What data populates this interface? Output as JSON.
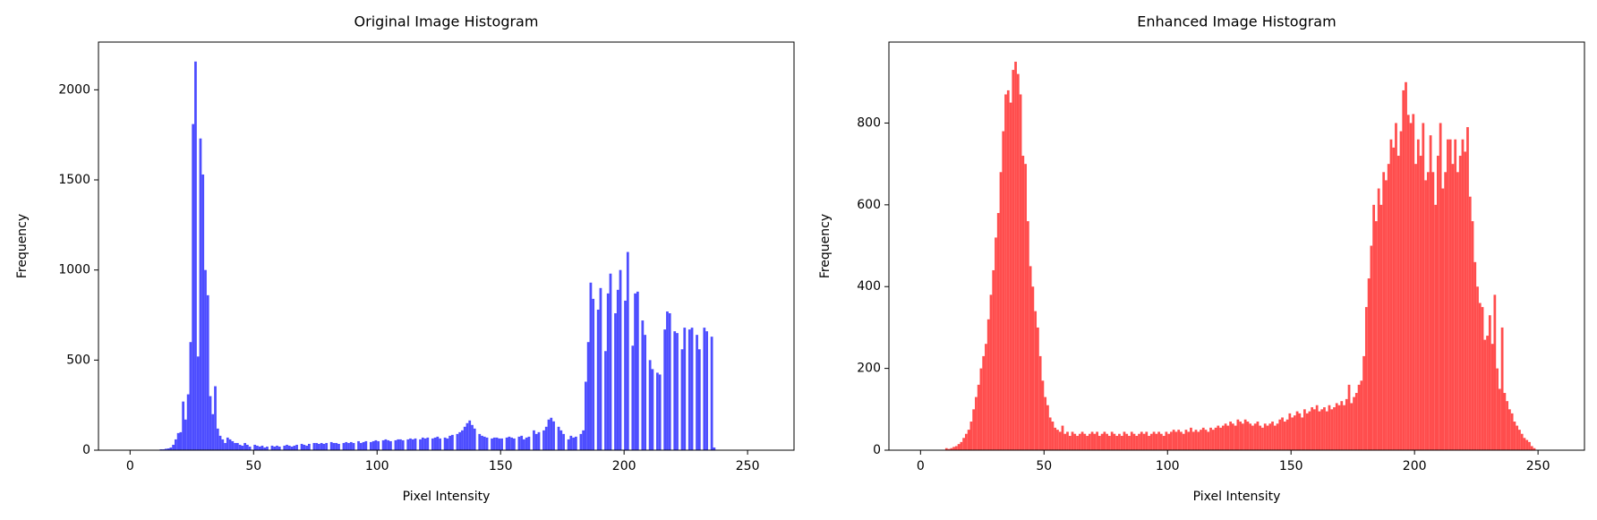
{
  "chart_data": [
    {
      "type": "histogram",
      "title": "Original Image Histogram",
      "xlabel": "Pixel Intensity",
      "ylabel": "Frequency",
      "color": "#4d4dff",
      "bins": [
        0,
        1,
        2,
        3,
        4,
        5,
        6,
        7,
        8,
        9,
        10,
        11,
        12,
        13,
        14,
        15,
        16,
        17,
        18,
        19,
        20,
        21,
        22,
        23,
        24,
        25,
        26,
        27,
        28,
        29,
        30,
        31,
        32,
        33,
        34,
        35,
        36,
        37,
        38,
        39,
        40,
        41,
        42,
        43,
        44,
        45,
        46,
        47,
        48,
        49,
        50,
        51,
        52,
        53,
        54,
        55,
        56,
        57,
        58,
        59,
        60,
        61,
        62,
        63,
        64,
        65,
        66,
        67,
        68,
        69,
        70,
        71,
        72,
        73,
        74,
        75,
        76,
        77,
        78,
        79,
        80,
        81,
        82,
        83,
        84,
        85,
        86,
        87,
        88,
        89,
        90,
        91,
        92,
        93,
        94,
        95,
        96,
        97,
        98,
        99,
        100,
        101,
        102,
        103,
        104,
        105,
        106,
        107,
        108,
        109,
        110,
        111,
        112,
        113,
        114,
        115,
        116,
        117,
        118,
        119,
        120,
        121,
        122,
        123,
        124,
        125,
        126,
        127,
        128,
        129,
        130,
        131,
        132,
        133,
        134,
        135,
        136,
        137,
        138,
        139,
        140,
        141,
        142,
        143,
        144,
        145,
        146,
        147,
        148,
        149,
        150,
        151,
        152,
        153,
        154,
        155,
        156,
        157,
        158,
        159,
        160,
        161,
        162,
        163,
        164,
        165,
        166,
        167,
        168,
        169,
        170,
        171,
        172,
        173,
        174,
        175,
        176,
        177,
        178,
        179,
        180,
        181,
        182,
        183,
        184,
        185,
        186,
        187,
        188,
        189,
        190,
        191,
        192,
        193,
        194,
        195,
        196,
        197,
        198,
        199,
        200,
        201,
        202,
        203,
        204,
        205,
        206,
        207,
        208,
        209,
        210,
        211,
        212,
        213,
        214,
        215,
        216,
        217,
        218,
        219,
        220,
        221,
        222,
        223,
        224,
        225,
        226,
        227,
        228,
        229,
        230,
        231,
        232,
        233,
        234,
        235,
        236,
        237,
        238,
        239,
        240,
        241,
        242,
        243,
        244,
        245,
        246,
        247,
        248,
        249,
        250,
        251,
        252,
        253,
        254,
        255,
        256
      ],
      "counts": [
        0,
        0,
        0,
        0,
        0,
        0,
        0,
        0,
        0,
        0,
        0,
        0,
        5,
        5,
        8,
        10,
        15,
        30,
        60,
        95,
        100,
        270,
        170,
        310,
        600,
        1810,
        2157,
        520,
        1730,
        1530,
        1000,
        860,
        300,
        200,
        355,
        120,
        80,
        60,
        40,
        70,
        60,
        50,
        40,
        40,
        30,
        25,
        40,
        30,
        20,
        0,
        30,
        25,
        20,
        25,
        15,
        20,
        0,
        25,
        20,
        25,
        20,
        0,
        25,
        30,
        25,
        20,
        25,
        30,
        0,
        35,
        30,
        25,
        35,
        0,
        40,
        40,
        35,
        40,
        35,
        40,
        0,
        45,
        40,
        40,
        35,
        0,
        40,
        45,
        40,
        45,
        40,
        0,
        50,
        40,
        45,
        50,
        0,
        45,
        50,
        55,
        50,
        0,
        55,
        60,
        55,
        50,
        0,
        55,
        60,
        60,
        55,
        0,
        60,
        65,
        60,
        65,
        0,
        60,
        70,
        65,
        70,
        0,
        65,
        70,
        75,
        65,
        0,
        70,
        65,
        80,
        85,
        0,
        90,
        100,
        110,
        130,
        150,
        165,
        140,
        120,
        0,
        90,
        80,
        75,
        70,
        0,
        65,
        70,
        70,
        65,
        65,
        0,
        70,
        75,
        70,
        65,
        0,
        75,
        80,
        60,
        70,
        75,
        0,
        110,
        90,
        100,
        0,
        110,
        130,
        170,
        180,
        160,
        0,
        130,
        110,
        90,
        0,
        60,
        80,
        70,
        75,
        0,
        90,
        110,
        380,
        600,
        930,
        840,
        0,
        780,
        900,
        0,
        550,
        870,
        980,
        0,
        760,
        890,
        1000,
        0,
        830,
        1100,
        0,
        580,
        870,
        880,
        0,
        720,
        640,
        0,
        500,
        450,
        0,
        430,
        420,
        0,
        670,
        770,
        760,
        0,
        660,
        650,
        0,
        560,
        680,
        0,
        670,
        680,
        0,
        640,
        560,
        0,
        680,
        660,
        0,
        630,
        15,
        0,
        0,
        0,
        0,
        0,
        0,
        0,
        0,
        0,
        0,
        0,
        0,
        0,
        0,
        0,
        0,
        0,
        0,
        0
      ],
      "xlim": [
        -12.8,
        268.8
      ],
      "xticks": [
        0,
        50,
        100,
        150,
        200,
        250
      ],
      "ylim": [
        0,
        2265
      ],
      "yticks": [
        0,
        500,
        1000,
        1500,
        2000
      ]
    },
    {
      "type": "histogram",
      "title": "Enhanced Image Histogram",
      "xlabel": "Pixel Intensity",
      "ylabel": "Frequency",
      "color": "#ff4d4d",
      "bins": [
        0,
        1,
        2,
        3,
        4,
        5,
        6,
        7,
        8,
        9,
        10,
        11,
        12,
        13,
        14,
        15,
        16,
        17,
        18,
        19,
        20,
        21,
        22,
        23,
        24,
        25,
        26,
        27,
        28,
        29,
        30,
        31,
        32,
        33,
        34,
        35,
        36,
        37,
        38,
        39,
        40,
        41,
        42,
        43,
        44,
        45,
        46,
        47,
        48,
        49,
        50,
        51,
        52,
        53,
        54,
        55,
        56,
        57,
        58,
        59,
        60,
        61,
        62,
        63,
        64,
        65,
        66,
        67,
        68,
        69,
        70,
        71,
        72,
        73,
        74,
        75,
        76,
        77,
        78,
        79,
        80,
        81,
        82,
        83,
        84,
        85,
        86,
        87,
        88,
        89,
        90,
        91,
        92,
        93,
        94,
        95,
        96,
        97,
        98,
        99,
        100,
        101,
        102,
        103,
        104,
        105,
        106,
        107,
        108,
        109,
        110,
        111,
        112,
        113,
        114,
        115,
        116,
        117,
        118,
        119,
        120,
        121,
        122,
        123,
        124,
        125,
        126,
        127,
        128,
        129,
        130,
        131,
        132,
        133,
        134,
        135,
        136,
        137,
        138,
        139,
        140,
        141,
        142,
        143,
        144,
        145,
        146,
        147,
        148,
        149,
        150,
        151,
        152,
        153,
        154,
        155,
        156,
        157,
        158,
        159,
        160,
        161,
        162,
        163,
        164,
        165,
        166,
        167,
        168,
        169,
        170,
        171,
        172,
        173,
        174,
        175,
        176,
        177,
        178,
        179,
        180,
        181,
        182,
        183,
        184,
        185,
        186,
        187,
        188,
        189,
        190,
        191,
        192,
        193,
        194,
        195,
        196,
        197,
        198,
        199,
        200,
        201,
        202,
        203,
        204,
        205,
        206,
        207,
        208,
        209,
        210,
        211,
        212,
        213,
        214,
        215,
        216,
        217,
        218,
        219,
        220,
        221,
        222,
        223,
        224,
        225,
        226,
        227,
        228,
        229,
        230,
        231,
        232,
        233,
        234,
        235,
        236,
        237,
        238,
        239,
        240,
        241,
        242,
        243,
        244,
        245,
        246,
        247,
        248,
        249,
        250,
        251,
        252,
        253,
        254,
        255,
        256
      ],
      "counts": [
        0,
        0,
        0,
        0,
        0,
        0,
        0,
        0,
        0,
        0,
        5,
        3,
        5,
        8,
        10,
        15,
        20,
        30,
        40,
        50,
        70,
        100,
        130,
        160,
        200,
        230,
        260,
        320,
        380,
        440,
        520,
        580,
        680,
        780,
        870,
        880,
        850,
        930,
        950,
        920,
        870,
        720,
        700,
        560,
        450,
        400,
        340,
        300,
        230,
        170,
        130,
        110,
        80,
        70,
        55,
        50,
        45,
        60,
        40,
        45,
        35,
        45,
        40,
        35,
        40,
        45,
        40,
        35,
        40,
        45,
        40,
        45,
        35,
        40,
        45,
        40,
        35,
        45,
        40,
        35,
        40,
        35,
        45,
        40,
        35,
        45,
        40,
        35,
        40,
        45,
        40,
        45,
        35,
        40,
        45,
        40,
        45,
        40,
        35,
        45,
        40,
        45,
        50,
        45,
        50,
        45,
        40,
        50,
        45,
        55,
        45,
        50,
        45,
        50,
        55,
        50,
        45,
        55,
        50,
        55,
        60,
        55,
        60,
        65,
        60,
        70,
        65,
        60,
        75,
        70,
        65,
        75,
        70,
        65,
        60,
        65,
        70,
        60,
        55,
        65,
        60,
        65,
        70,
        60,
        65,
        75,
        80,
        70,
        75,
        90,
        80,
        85,
        95,
        90,
        80,
        100,
        90,
        95,
        105,
        100,
        110,
        95,
        100,
        105,
        95,
        110,
        100,
        105,
        115,
        110,
        120,
        110,
        125,
        160,
        115,
        130,
        140,
        160,
        170,
        230,
        350,
        420,
        500,
        600,
        560,
        640,
        600,
        680,
        660,
        700,
        760,
        740,
        800,
        720,
        780,
        880,
        900,
        820,
        800,
        822,
        700,
        760,
        720,
        800,
        660,
        680,
        770,
        680,
        600,
        720,
        800,
        640,
        680,
        760,
        760,
        700,
        760,
        680,
        720,
        760,
        730,
        790,
        620,
        560,
        460,
        400,
        360,
        350,
        270,
        280,
        330,
        260,
        380,
        200,
        150,
        300,
        140,
        120,
        100,
        90,
        70,
        60,
        50,
        40,
        30,
        25,
        20,
        10,
        5,
        0,
        0,
        0,
        0,
        0,
        0,
        0
      ],
      "xlim": [
        -12.8,
        268.8
      ],
      "xticks": [
        0,
        50,
        100,
        150,
        200,
        250
      ],
      "ylim": [
        0,
        998
      ],
      "yticks": [
        0,
        200,
        400,
        600,
        800
      ]
    }
  ]
}
